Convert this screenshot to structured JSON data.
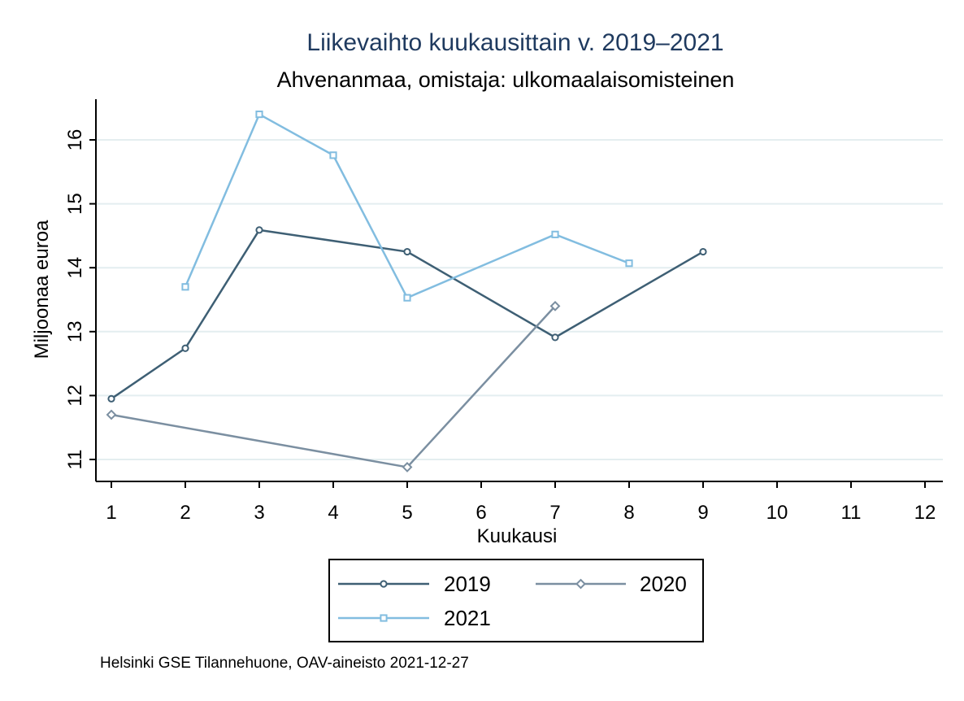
{
  "chart_data": {
    "type": "line",
    "title": "Liikevaihto kuukausittain v. 2019–2021",
    "subtitle": "Ahvenanmaa, omistaja: ulkomaalaisomisteinen",
    "xlabel": "Kuukausi",
    "ylabel": "Miljoonaa euroa",
    "xlim": [
      1,
      12
    ],
    "ylim": [
      10.7,
      16.65
    ],
    "xticks": [
      1,
      2,
      3,
      4,
      5,
      6,
      7,
      8,
      9,
      10,
      11,
      12
    ],
    "yticks": [
      11,
      12,
      13,
      14,
      15,
      16
    ],
    "grid": true,
    "legend_position": "bottom",
    "series": [
      {
        "name": "2019",
        "color": "#3e5f74",
        "marker": "circle",
        "x": [
          1,
          2,
          3,
          5,
          7,
          9
        ],
        "y": [
          11.95,
          12.74,
          14.59,
          14.25,
          12.91,
          14.25
        ]
      },
      {
        "name": "2020",
        "color": "#7b8fa1",
        "marker": "diamond",
        "x": [
          1,
          5,
          7
        ],
        "y": [
          11.7,
          10.88,
          13.4
        ]
      },
      {
        "name": "2021",
        "color": "#82bde0",
        "marker": "square",
        "x": [
          2,
          3,
          4,
          5,
          7,
          8
        ],
        "y": [
          13.7,
          16.4,
          15.76,
          13.53,
          14.52,
          14.07
        ]
      }
    ],
    "note": "Helsinki GSE Tilannehuone, OAV-aineisto 2021-12-27"
  }
}
